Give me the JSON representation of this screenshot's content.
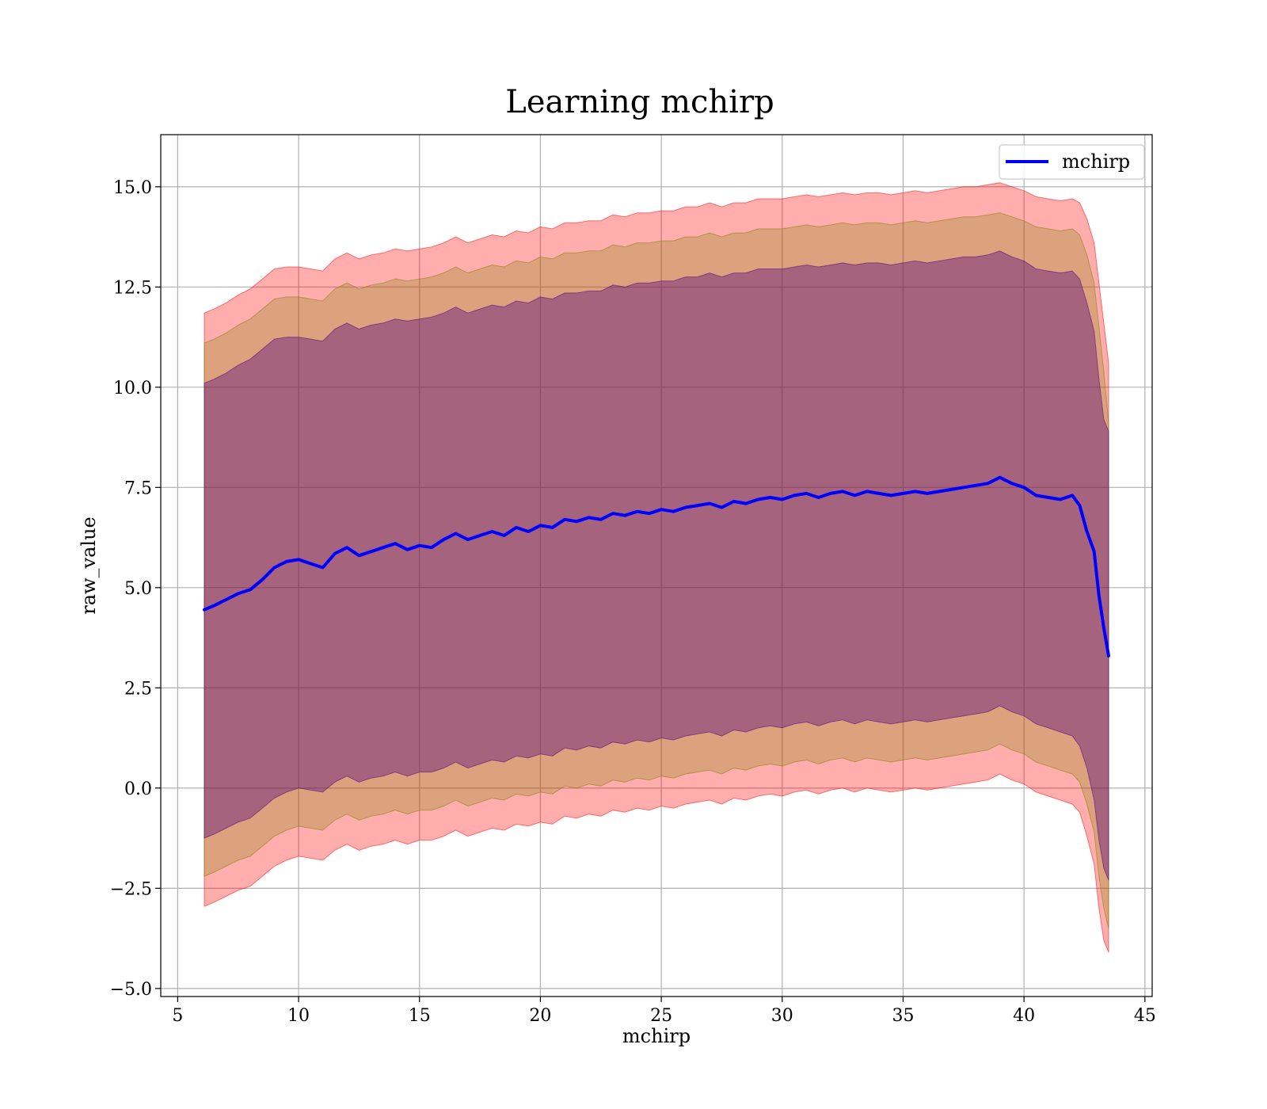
{
  "chart_data": {
    "type": "line",
    "title": "Learning mchirp",
    "xlabel": "mchirp",
    "ylabel": "raw_value",
    "xlim": [
      4.3,
      45.3
    ],
    "ylim": [
      -5.2,
      16.3
    ],
    "grid": true,
    "legend_position": "top-right",
    "x_ticks": [
      5,
      10,
      15,
      20,
      25,
      30,
      35,
      40,
      45
    ],
    "x_tick_labels": [
      "5",
      "10",
      "15",
      "20",
      "25",
      "30",
      "35",
      "40",
      "45"
    ],
    "y_ticks": [
      -5.0,
      -2.5,
      0.0,
      2.5,
      5.0,
      7.5,
      10.0,
      12.5,
      15.0
    ],
    "y_tick_labels": [
      "−5.0",
      "−2.5",
      "0.0",
      "2.5",
      "5.0",
      "7.5",
      "10.0",
      "12.5",
      "15.0"
    ],
    "series": [
      {
        "name": "mchirp",
        "color": "#0000ff",
        "x": [
          6.1,
          6.5,
          7.0,
          7.5,
          8.0,
          8.5,
          9.0,
          9.5,
          10.0,
          10.5,
          11.0,
          11.5,
          12.0,
          12.5,
          13.0,
          13.5,
          14.0,
          14.5,
          15.0,
          15.5,
          16.0,
          16.5,
          17.0,
          17.5,
          18.0,
          18.5,
          19.0,
          19.5,
          20.0,
          20.5,
          21.0,
          21.5,
          22.0,
          22.5,
          23.0,
          23.5,
          24.0,
          24.5,
          25.0,
          25.5,
          26.0,
          26.5,
          27.0,
          27.5,
          28.0,
          28.5,
          29.0,
          29.5,
          30.0,
          30.5,
          31.0,
          31.5,
          32.0,
          32.5,
          33.0,
          33.5,
          34.0,
          34.5,
          35.0,
          35.5,
          36.0,
          36.5,
          37.0,
          37.5,
          38.0,
          38.5,
          39.0,
          39.5,
          40.0,
          40.5,
          41.0,
          41.5,
          42.0,
          42.3,
          42.6,
          42.9,
          43.1,
          43.3,
          43.5
        ],
        "y": [
          4.45,
          4.55,
          4.7,
          4.85,
          4.95,
          5.2,
          5.5,
          5.65,
          5.7,
          5.6,
          5.5,
          5.85,
          6.0,
          5.8,
          5.9,
          6.0,
          6.1,
          5.95,
          6.05,
          6.0,
          6.2,
          6.35,
          6.2,
          6.3,
          6.4,
          6.3,
          6.5,
          6.4,
          6.55,
          6.5,
          6.7,
          6.65,
          6.75,
          6.7,
          6.85,
          6.8,
          6.9,
          6.85,
          6.95,
          6.9,
          7.0,
          7.05,
          7.1,
          7.0,
          7.15,
          7.1,
          7.2,
          7.25,
          7.2,
          7.3,
          7.35,
          7.25,
          7.35,
          7.4,
          7.3,
          7.4,
          7.35,
          7.3,
          7.35,
          7.4,
          7.35,
          7.4,
          7.45,
          7.5,
          7.55,
          7.6,
          7.75,
          7.6,
          7.5,
          7.3,
          7.25,
          7.2,
          7.3,
          7.05,
          6.4,
          5.9,
          4.8,
          4.0,
          3.3
        ]
      }
    ],
    "bands": [
      {
        "color": "#ff0000",
        "opacity": 0.32,
        "upper": [
          11.85,
          11.95,
          12.1,
          12.3,
          12.45,
          12.7,
          12.95,
          13.0,
          13.0,
          12.95,
          12.9,
          13.2,
          13.35,
          13.2,
          13.3,
          13.35,
          13.45,
          13.4,
          13.45,
          13.5,
          13.6,
          13.75,
          13.6,
          13.7,
          13.8,
          13.75,
          13.9,
          13.85,
          14.0,
          13.95,
          14.1,
          14.1,
          14.15,
          14.15,
          14.3,
          14.25,
          14.35,
          14.35,
          14.4,
          14.4,
          14.5,
          14.5,
          14.6,
          14.5,
          14.6,
          14.6,
          14.7,
          14.7,
          14.7,
          14.75,
          14.8,
          14.75,
          14.8,
          14.85,
          14.8,
          14.85,
          14.85,
          14.8,
          14.85,
          14.9,
          14.85,
          14.9,
          14.95,
          15.0,
          15.0,
          15.05,
          15.1,
          15.0,
          14.9,
          14.75,
          14.7,
          14.65,
          14.7,
          14.6,
          14.2,
          13.6,
          12.6,
          11.6,
          10.6
        ],
        "lower": [
          -2.95,
          -2.85,
          -2.7,
          -2.55,
          -2.45,
          -2.2,
          -1.95,
          -1.8,
          -1.7,
          -1.75,
          -1.8,
          -1.55,
          -1.4,
          -1.55,
          -1.45,
          -1.4,
          -1.3,
          -1.4,
          -1.3,
          -1.3,
          -1.2,
          -1.05,
          -1.2,
          -1.1,
          -1.0,
          -1.05,
          -0.9,
          -0.95,
          -0.85,
          -0.9,
          -0.7,
          -0.75,
          -0.65,
          -0.7,
          -0.55,
          -0.6,
          -0.5,
          -0.55,
          -0.45,
          -0.5,
          -0.4,
          -0.35,
          -0.3,
          -0.4,
          -0.25,
          -0.3,
          -0.2,
          -0.15,
          -0.2,
          -0.1,
          -0.05,
          -0.15,
          -0.05,
          0.0,
          -0.1,
          0.0,
          -0.05,
          -0.1,
          -0.05,
          0.0,
          -0.05,
          0.0,
          0.05,
          0.1,
          0.15,
          0.2,
          0.35,
          0.2,
          0.1,
          -0.1,
          -0.2,
          -0.3,
          -0.4,
          -0.6,
          -1.2,
          -1.9,
          -3.0,
          -3.8,
          -4.1
        ]
      },
      {
        "color": "#808000",
        "opacity": 0.28,
        "upper": [
          11.1,
          11.2,
          11.35,
          11.55,
          11.7,
          11.95,
          12.2,
          12.25,
          12.25,
          12.2,
          12.15,
          12.45,
          12.6,
          12.45,
          12.55,
          12.6,
          12.7,
          12.65,
          12.7,
          12.75,
          12.85,
          13.0,
          12.85,
          12.95,
          13.05,
          13.0,
          13.15,
          13.1,
          13.25,
          13.2,
          13.35,
          13.35,
          13.4,
          13.4,
          13.55,
          13.5,
          13.6,
          13.6,
          13.65,
          13.65,
          13.75,
          13.75,
          13.85,
          13.75,
          13.85,
          13.85,
          13.95,
          13.95,
          13.95,
          14.0,
          14.05,
          14.0,
          14.05,
          14.1,
          14.05,
          14.1,
          14.1,
          14.05,
          14.1,
          14.15,
          14.1,
          14.15,
          14.2,
          14.25,
          14.25,
          14.3,
          14.35,
          14.25,
          14.15,
          14.0,
          13.95,
          13.9,
          13.95,
          13.8,
          13.3,
          12.6,
          11.5,
          10.4,
          9.1
        ],
        "lower": [
          -2.2,
          -2.1,
          -1.95,
          -1.8,
          -1.7,
          -1.45,
          -1.2,
          -1.05,
          -0.95,
          -1.0,
          -1.05,
          -0.8,
          -0.65,
          -0.8,
          -0.7,
          -0.65,
          -0.55,
          -0.65,
          -0.55,
          -0.55,
          -0.45,
          -0.3,
          -0.45,
          -0.35,
          -0.25,
          -0.3,
          -0.15,
          -0.2,
          -0.1,
          -0.15,
          0.05,
          0.0,
          0.1,
          0.05,
          0.2,
          0.15,
          0.25,
          0.2,
          0.3,
          0.25,
          0.35,
          0.4,
          0.45,
          0.35,
          0.5,
          0.45,
          0.55,
          0.6,
          0.55,
          0.65,
          0.7,
          0.6,
          0.7,
          0.75,
          0.65,
          0.75,
          0.7,
          0.65,
          0.7,
          0.75,
          0.7,
          0.75,
          0.8,
          0.85,
          0.9,
          0.95,
          1.1,
          0.95,
          0.85,
          0.65,
          0.55,
          0.45,
          0.35,
          0.15,
          -0.4,
          -1.1,
          -2.2,
          -3.0,
          -3.5
        ]
      },
      {
        "color": "#4b0082",
        "opacity": 0.38,
        "upper": [
          10.1,
          10.2,
          10.35,
          10.55,
          10.7,
          10.95,
          11.2,
          11.25,
          11.25,
          11.2,
          11.15,
          11.45,
          11.6,
          11.45,
          11.55,
          11.6,
          11.7,
          11.65,
          11.7,
          11.75,
          11.85,
          12.0,
          11.85,
          11.95,
          12.05,
          12.0,
          12.15,
          12.1,
          12.25,
          12.2,
          12.35,
          12.35,
          12.4,
          12.4,
          12.55,
          12.5,
          12.6,
          12.6,
          12.65,
          12.65,
          12.75,
          12.75,
          12.85,
          12.75,
          12.85,
          12.85,
          12.95,
          12.95,
          12.95,
          13.0,
          13.05,
          13.0,
          13.05,
          13.1,
          13.05,
          13.1,
          13.1,
          13.05,
          13.1,
          13.15,
          13.1,
          13.15,
          13.2,
          13.25,
          13.25,
          13.3,
          13.4,
          13.25,
          13.15,
          12.95,
          12.9,
          12.85,
          12.9,
          12.7,
          12.1,
          11.4,
          10.2,
          9.2,
          8.9
        ],
        "lower": [
          -1.25,
          -1.15,
          -1.0,
          -0.85,
          -0.75,
          -0.5,
          -0.25,
          -0.1,
          0.0,
          -0.05,
          -0.1,
          0.15,
          0.3,
          0.15,
          0.25,
          0.3,
          0.4,
          0.3,
          0.4,
          0.4,
          0.5,
          0.65,
          0.5,
          0.6,
          0.7,
          0.65,
          0.8,
          0.75,
          0.85,
          0.8,
          1.0,
          0.95,
          1.05,
          1.0,
          1.15,
          1.1,
          1.2,
          1.15,
          1.25,
          1.2,
          1.3,
          1.35,
          1.4,
          1.3,
          1.45,
          1.4,
          1.5,
          1.55,
          1.5,
          1.6,
          1.65,
          1.55,
          1.65,
          1.7,
          1.6,
          1.7,
          1.65,
          1.6,
          1.65,
          1.7,
          1.65,
          1.7,
          1.75,
          1.8,
          1.85,
          1.9,
          2.05,
          1.9,
          1.8,
          1.6,
          1.5,
          1.4,
          1.3,
          1.05,
          0.5,
          -0.3,
          -1.3,
          -2.0,
          -2.3
        ]
      }
    ]
  }
}
